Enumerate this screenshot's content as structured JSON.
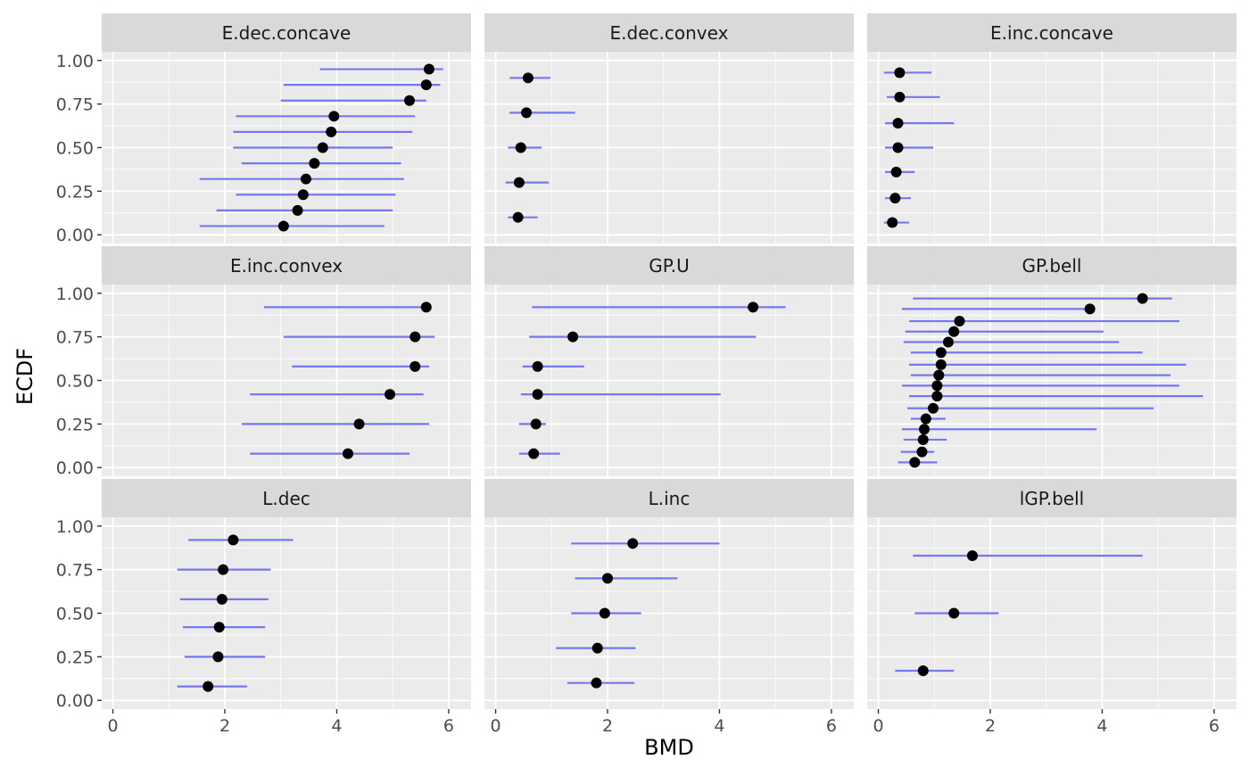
{
  "chart_data": {
    "type": "scatter",
    "xlabel": "BMD",
    "ylabel": "ECDF",
    "xlim": [
      -0.2,
      6.4
    ],
    "ylim": [
      -0.05,
      1.05
    ],
    "x_ticks": [
      0,
      2,
      4,
      6
    ],
    "y_ticks": [
      0,
      0.25,
      0.5,
      0.75,
      1
    ],
    "y_tick_labels": [
      "0.00",
      "0.25",
      "0.50",
      "0.75",
      "1.00"
    ],
    "point_color": "#000000",
    "interval_color": "#7777EE",
    "panel_background": "#EBEBEB",
    "strip_background": "#D9D9D9",
    "grid": true,
    "panels": [
      {
        "title": "E.dec.concave",
        "points": [
          {
            "bmd": 3.05,
            "lower": 1.55,
            "upper": 4.85,
            "ecdf": 0.05
          },
          {
            "bmd": 3.3,
            "lower": 1.85,
            "upper": 5.0,
            "ecdf": 0.14
          },
          {
            "bmd": 3.4,
            "lower": 2.2,
            "upper": 5.05,
            "ecdf": 0.23
          },
          {
            "bmd": 3.45,
            "lower": 1.55,
            "upper": 5.2,
            "ecdf": 0.32
          },
          {
            "bmd": 3.6,
            "lower": 2.3,
            "upper": 5.15,
            "ecdf": 0.41
          },
          {
            "bmd": 3.75,
            "lower": 2.15,
            "upper": 5.0,
            "ecdf": 0.5
          },
          {
            "bmd": 3.9,
            "lower": 2.15,
            "upper": 5.35,
            "ecdf": 0.59
          },
          {
            "bmd": 3.95,
            "lower": 2.2,
            "upper": 5.4,
            "ecdf": 0.68
          },
          {
            "bmd": 5.3,
            "lower": 3.0,
            "upper": 5.6,
            "ecdf": 0.77
          },
          {
            "bmd": 5.6,
            "lower": 3.05,
            "upper": 5.85,
            "ecdf": 0.86
          },
          {
            "bmd": 5.65,
            "lower": 3.7,
            "upper": 5.9,
            "ecdf": 0.95
          }
        ]
      },
      {
        "title": "E.dec.convex",
        "points": [
          {
            "bmd": 0.4,
            "lower": 0.22,
            "upper": 0.75,
            "ecdf": 0.1
          },
          {
            "bmd": 0.42,
            "lower": 0.18,
            "upper": 0.95,
            "ecdf": 0.3
          },
          {
            "bmd": 0.45,
            "lower": 0.22,
            "upper": 0.82,
            "ecdf": 0.5
          },
          {
            "bmd": 0.55,
            "lower": 0.25,
            "upper": 1.42,
            "ecdf": 0.7
          },
          {
            "bmd": 0.58,
            "lower": 0.25,
            "upper": 0.98,
            "ecdf": 0.9
          }
        ]
      },
      {
        "title": "E.inc.concave",
        "points": [
          {
            "bmd": 0.25,
            "lower": 0.1,
            "upper": 0.55,
            "ecdf": 0.07
          },
          {
            "bmd": 0.3,
            "lower": 0.12,
            "upper": 0.58,
            "ecdf": 0.21
          },
          {
            "bmd": 0.32,
            "lower": 0.12,
            "upper": 0.65,
            "ecdf": 0.36
          },
          {
            "bmd": 0.35,
            "lower": 0.12,
            "upper": 0.98,
            "ecdf": 0.5
          },
          {
            "bmd": 0.35,
            "lower": 0.12,
            "upper": 1.35,
            "ecdf": 0.64
          },
          {
            "bmd": 0.38,
            "lower": 0.15,
            "upper": 1.1,
            "ecdf": 0.79
          },
          {
            "bmd": 0.38,
            "lower": 0.1,
            "upper": 0.95,
            "ecdf": 0.93
          }
        ]
      },
      {
        "title": "E.inc.convex",
        "points": [
          {
            "bmd": 4.2,
            "lower": 2.45,
            "upper": 5.3,
            "ecdf": 0.08
          },
          {
            "bmd": 4.4,
            "lower": 2.3,
            "upper": 5.65,
            "ecdf": 0.25
          },
          {
            "bmd": 4.95,
            "lower": 2.45,
            "upper": 5.55,
            "ecdf": 0.42
          },
          {
            "bmd": 5.4,
            "lower": 3.2,
            "upper": 5.65,
            "ecdf": 0.58
          },
          {
            "bmd": 5.4,
            "lower": 3.05,
            "upper": 5.75,
            "ecdf": 0.75
          },
          {
            "bmd": 5.6,
            "lower": 2.7,
            "upper": 5.6,
            "ecdf": 0.92
          }
        ]
      },
      {
        "title": "GP.U",
        "points": [
          {
            "bmd": 0.68,
            "lower": 0.42,
            "upper": 1.15,
            "ecdf": 0.08
          },
          {
            "bmd": 0.72,
            "lower": 0.42,
            "upper": 0.9,
            "ecdf": 0.25
          },
          {
            "bmd": 0.75,
            "lower": 0.45,
            "upper": 4.02,
            "ecdf": 0.42
          },
          {
            "bmd": 0.75,
            "lower": 0.48,
            "upper": 1.58,
            "ecdf": 0.58
          },
          {
            "bmd": 1.38,
            "lower": 0.6,
            "upper": 4.65,
            "ecdf": 0.75
          },
          {
            "bmd": 4.6,
            "lower": 0.65,
            "upper": 5.18,
            "ecdf": 0.92
          }
        ]
      },
      {
        "title": "GP.bell",
        "points": [
          {
            "bmd": 0.65,
            "lower": 0.35,
            "upper": 1.05,
            "ecdf": 0.03
          },
          {
            "bmd": 0.78,
            "lower": 0.4,
            "upper": 1.0,
            "ecdf": 0.09
          },
          {
            "bmd": 0.8,
            "lower": 0.45,
            "upper": 1.22,
            "ecdf": 0.16
          },
          {
            "bmd": 0.82,
            "lower": 0.42,
            "upper": 3.9,
            "ecdf": 0.22
          },
          {
            "bmd": 0.85,
            "lower": 0.58,
            "upper": 1.2,
            "ecdf": 0.28
          },
          {
            "bmd": 0.98,
            "lower": 0.52,
            "upper": 4.92,
            "ecdf": 0.34
          },
          {
            "bmd": 1.05,
            "lower": 0.55,
            "upper": 5.8,
            "ecdf": 0.41
          },
          {
            "bmd": 1.05,
            "lower": 0.42,
            "upper": 5.38,
            "ecdf": 0.47
          },
          {
            "bmd": 1.08,
            "lower": 0.58,
            "upper": 5.22,
            "ecdf": 0.53
          },
          {
            "bmd": 1.12,
            "lower": 0.55,
            "upper": 5.5,
            "ecdf": 0.59
          },
          {
            "bmd": 1.12,
            "lower": 0.58,
            "upper": 4.72,
            "ecdf": 0.66
          },
          {
            "bmd": 1.25,
            "lower": 0.45,
            "upper": 4.3,
            "ecdf": 0.72
          },
          {
            "bmd": 1.35,
            "lower": 0.48,
            "upper": 4.02,
            "ecdf": 0.78
          },
          {
            "bmd": 1.45,
            "lower": 0.55,
            "upper": 5.38,
            "ecdf": 0.84
          },
          {
            "bmd": 3.78,
            "lower": 0.42,
            "upper": 3.78,
            "ecdf": 0.91
          },
          {
            "bmd": 4.72,
            "lower": 0.62,
            "upper": 5.25,
            "ecdf": 0.97
          }
        ]
      },
      {
        "title": "L.dec",
        "points": [
          {
            "bmd": 1.7,
            "lower": 1.15,
            "upper": 2.4,
            "ecdf": 0.08
          },
          {
            "bmd": 1.88,
            "lower": 1.28,
            "upper": 2.72,
            "ecdf": 0.25
          },
          {
            "bmd": 1.9,
            "lower": 1.25,
            "upper": 2.72,
            "ecdf": 0.42
          },
          {
            "bmd": 1.95,
            "lower": 1.2,
            "upper": 2.78,
            "ecdf": 0.58
          },
          {
            "bmd": 1.97,
            "lower": 1.15,
            "upper": 2.82,
            "ecdf": 0.75
          },
          {
            "bmd": 2.15,
            "lower": 1.35,
            "upper": 3.22,
            "ecdf": 0.92
          }
        ]
      },
      {
        "title": "L.inc",
        "points": [
          {
            "bmd": 1.8,
            "lower": 1.28,
            "upper": 2.48,
            "ecdf": 0.1
          },
          {
            "bmd": 1.82,
            "lower": 1.08,
            "upper": 2.5,
            "ecdf": 0.3
          },
          {
            "bmd": 1.95,
            "lower": 1.35,
            "upper": 2.6,
            "ecdf": 0.5
          },
          {
            "bmd": 2.0,
            "lower": 1.42,
            "upper": 3.25,
            "ecdf": 0.7
          },
          {
            "bmd": 2.45,
            "lower": 1.35,
            "upper": 4.0,
            "ecdf": 0.9
          }
        ]
      },
      {
        "title": "lGP.bell",
        "points": [
          {
            "bmd": 0.8,
            "lower": 0.3,
            "upper": 1.35,
            "ecdf": 0.17
          },
          {
            "bmd": 1.35,
            "lower": 0.65,
            "upper": 2.15,
            "ecdf": 0.5
          },
          {
            "bmd": 1.68,
            "lower": 0.62,
            "upper": 4.72,
            "ecdf": 0.83
          }
        ]
      }
    ]
  }
}
